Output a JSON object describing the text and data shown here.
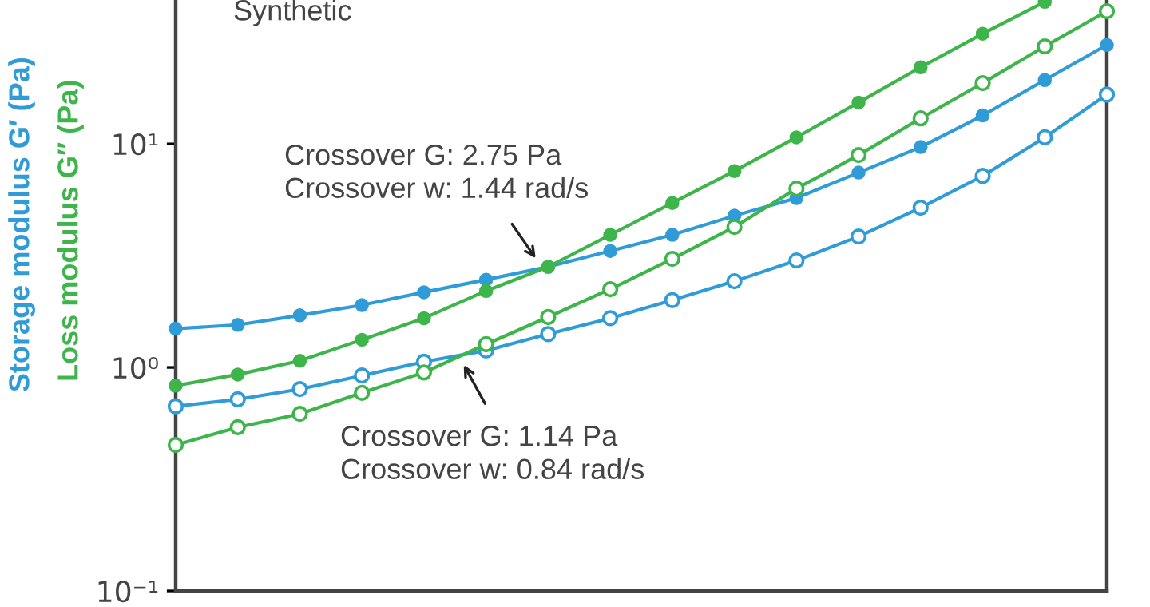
{
  "chart_data": {
    "type": "line",
    "ylabel": "Storage modulus G′ (Pa)",
    "categories": [
      null,
      null,
      null,
      null,
      null,
      null,
      null,
      null,
      null,
      null,
      null,
      null,
      null,
      null,
      null,
      null
    ],
    "series": [
      {
        "color": "#2f9bd7",
        "values": [
          1.49,
          1.55,
          1.71,
          1.9,
          2.17,
          2.47,
          2.82,
          3.32,
          3.92,
          4.77,
          5.72,
          7.44,
          9.68,
          13.4,
          19.3,
          27.7
        ]
      },
      {
        "color": "#2f9bd7",
        "values": [
          0.67,
          0.72,
          0.8,
          0.92,
          1.06,
          1.19,
          1.41,
          1.66,
          2.0,
          2.43,
          3.01,
          3.85,
          5.18,
          7.19,
          10.7,
          16.6
        ]
      },
      {
        "color": "#3db54a",
        "values": [
          0.83,
          0.93,
          1.07,
          1.33,
          1.66,
          2.2,
          2.82,
          3.92,
          5.44,
          7.56,
          10.7,
          15.3,
          22.0,
          31.1,
          43.2,
          null
        ]
      },
      {
        "color": "#3db54a",
        "values": [
          0.45,
          0.54,
          0.62,
          0.77,
          0.95,
          1.27,
          1.68,
          2.24,
          3.06,
          4.25,
          6.31,
          8.91,
          13.0,
          18.7,
          27.3,
          39.2
        ]
      }
    ],
    "log": "y",
    "ylim": [
      0.1,
      44
    ],
    "yticks": [
      {
        "value": 0.1,
        "label": "10⁻¹"
      },
      {
        "value": 1,
        "label": "10⁰"
      },
      {
        "value": 10,
        "label": "10¹"
      }
    ],
    "marker": "circle",
    "line_style": "solid",
    "grid": false,
    "annotations": [
      "Crossover G: 2.75 Pa\nCrossover w: 1.44 rad/s",
      "Crossover G: 1.14 Pa\nCrossover w: 0.84 rad/s",
      "Loss modulus G″ (Pa)",
      "Synthetic"
    ]
  }
}
